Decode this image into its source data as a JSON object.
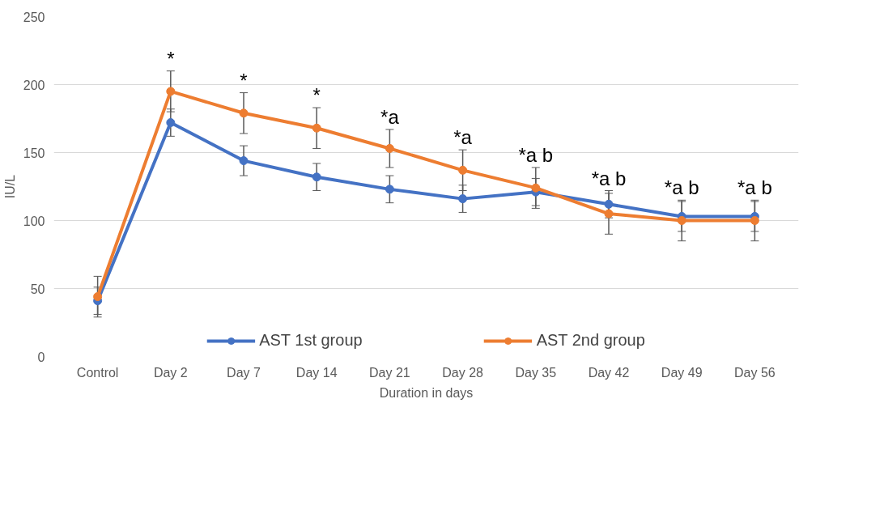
{
  "chart_data": {
    "type": "line",
    "xlabel": "Duration in days",
    "ylabel": "IU/L",
    "categories": [
      "Control",
      "Day 2",
      "Day 7",
      "Day 14",
      "Day 21",
      "Day 28",
      "Day 35",
      "Day 42",
      "Day 49",
      "Day 56"
    ],
    "series": [
      {
        "name": "AST 1st group",
        "color": "#4472c4",
        "values": [
          41,
          172,
          144,
          132,
          123,
          116,
          121,
          112,
          103,
          103
        ],
        "errors": [
          10,
          10,
          11,
          10,
          10,
          10,
          10,
          10,
          11,
          11
        ]
      },
      {
        "name": "AST 2nd group",
        "color": "#ed7d31",
        "values": [
          44,
          195,
          179,
          168,
          153,
          137,
          124,
          105,
          100,
          100
        ],
        "errors": [
          15,
          15,
          15,
          15,
          14,
          15,
          15,
          15,
          15,
          15
        ]
      }
    ],
    "ylim": [
      0,
      250
    ],
    "yticks": [
      0,
      50,
      100,
      150,
      200,
      250
    ],
    "grid": "y",
    "legend": "bottom",
    "marker": "circle",
    "line_style": "solid",
    "annotations": [
      "*",
      "*",
      "*",
      "*a",
      "*a",
      "*a b",
      "*a b",
      "*a b",
      "*a b"
    ]
  }
}
